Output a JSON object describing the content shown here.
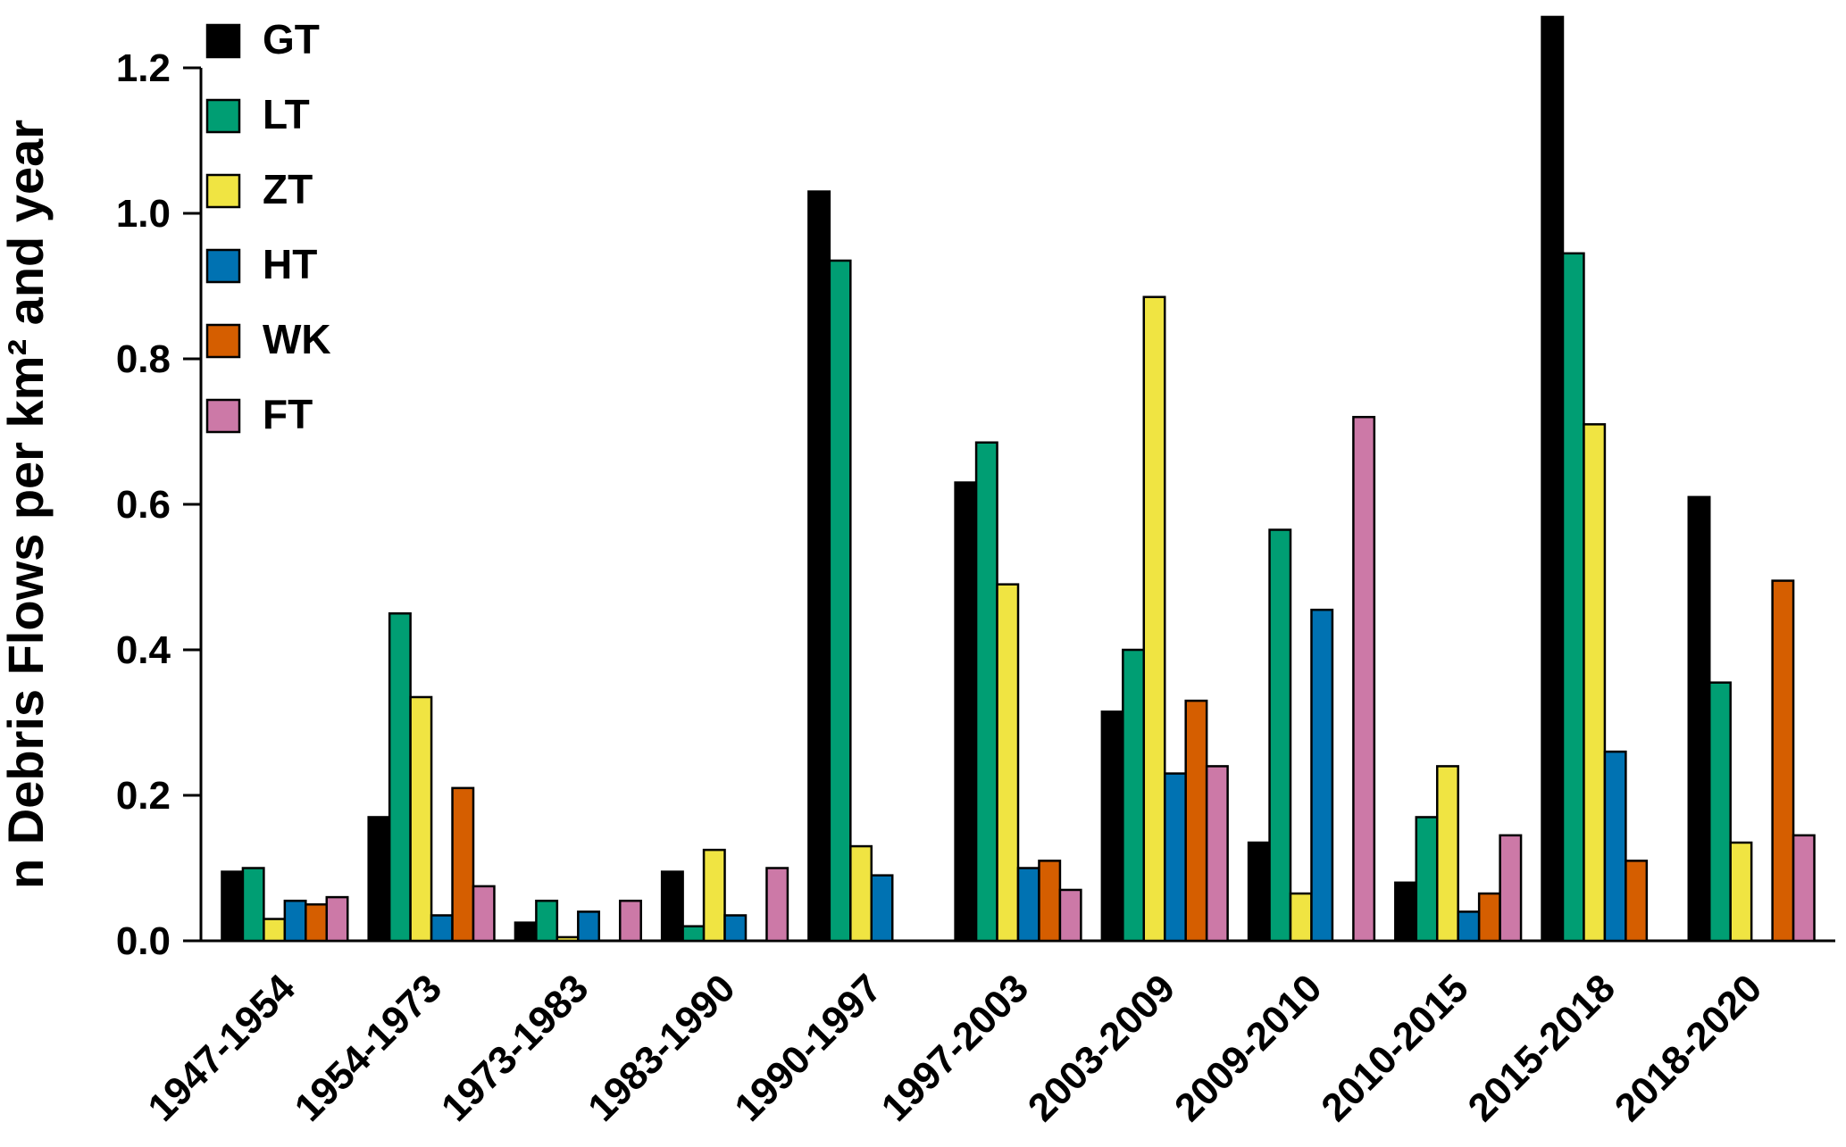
{
  "chart_data": {
    "type": "bar",
    "title": "",
    "xlabel": "",
    "ylabel": "n Debris Flows per km² and year",
    "ylim": [
      0,
      1.2
    ],
    "yticks": [
      0.0,
      0.2,
      0.4,
      0.6,
      0.8,
      1.0,
      1.2
    ],
    "ytick_labels": [
      "0.0",
      "0.2",
      "0.4",
      "0.6",
      "0.8",
      "1.0",
      "1.2"
    ],
    "grid": false,
    "legend_position": "top-left",
    "bar_outline_color": "#000000",
    "categories": [
      "1947-1954",
      "1954-1973",
      "1973-1983",
      "1983-1990",
      "1990-1997",
      "1997-2003",
      "2003-2009",
      "2009-2010",
      "2010-2015",
      "2015-2018",
      "2018-2020"
    ],
    "series": [
      {
        "name": "GT",
        "color": "#000000",
        "values": [
          0.095,
          0.17,
          0.025,
          0.095,
          1.03,
          0.63,
          0.315,
          0.135,
          0.08,
          1.27,
          0.61
        ]
      },
      {
        "name": "LT",
        "color": "#009E73",
        "values": [
          0.1,
          0.45,
          0.055,
          0.02,
          0.935,
          0.685,
          0.4,
          0.565,
          0.17,
          0.945,
          0.355
        ]
      },
      {
        "name": "ZT",
        "color": "#F0E442",
        "values": [
          0.03,
          0.335,
          0.005,
          0.125,
          0.13,
          0.49,
          0.885,
          0.065,
          0.24,
          0.71,
          0.135
        ]
      },
      {
        "name": "HT",
        "color": "#0072B2",
        "values": [
          0.055,
          0.035,
          0.04,
          0.035,
          0.09,
          0.1,
          0.23,
          0.455,
          0.04,
          0.26,
          0
        ]
      },
      {
        "name": "WK",
        "color": "#D55E00",
        "values": [
          0.05,
          0.21,
          0,
          0,
          0,
          0.11,
          0.33,
          0,
          0.065,
          0.11,
          0.495
        ]
      },
      {
        "name": "FT",
        "color": "#CC79A7",
        "values": [
          0.06,
          0.075,
          0.055,
          0.1,
          0,
          0.07,
          0.24,
          0.72,
          0.145,
          0,
          0.145
        ]
      }
    ]
  }
}
